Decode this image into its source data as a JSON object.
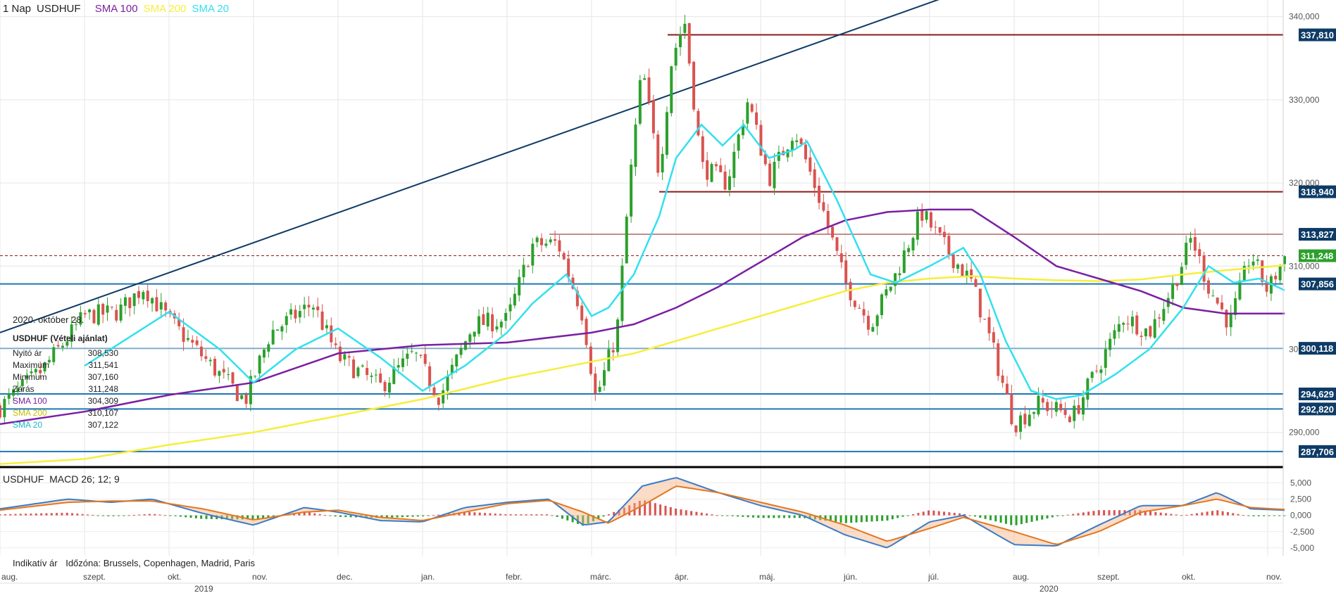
{
  "header": {
    "period": "1 Nap",
    "symbol": "USDHUF",
    "indicators": [
      {
        "name": "SMA 100",
        "color": "#7b1fa2"
      },
      {
        "name": "SMA 200",
        "color": "#f6ee3c"
      },
      {
        "name": "SMA 20",
        "color": "#33e0ee"
      }
    ]
  },
  "info_panel": {
    "date": "2020. október 28.",
    "instrument": "USDHUF (Vételi ajánlat)",
    "rows": [
      {
        "label": "Nyitó ár",
        "value": "308,530"
      },
      {
        "label": "Maximum",
        "value": "311,541"
      },
      {
        "label": "Minimum",
        "value": "307,160"
      },
      {
        "label": "Zárás",
        "value": "311,248"
      },
      {
        "label": "SMA 100",
        "value": "304,309"
      },
      {
        "label": "SMA 200",
        "value": "310,107"
      },
      {
        "label": "SMA 20",
        "value": "307,122"
      }
    ]
  },
  "macd_header": {
    "symbol": "USDHUF",
    "label": "MACD 26; 12; 9"
  },
  "footer": {
    "left": "Indikatív ár",
    "timezone": "Időzóna: Brussels, Copenhagen, Madrid, Paris"
  },
  "colors": {
    "up": "#2ca02c",
    "down": "#d9534f",
    "sma100": "#7b1fa2",
    "sma200": "#f6ee3c",
    "sma20": "#33e0ee",
    "trendline": "#0d3b66",
    "resistance": "#8b1a1a",
    "support": "#1f77b4",
    "macd": "#3a7bc8",
    "signal": "#e3771f"
  },
  "chart_data": [
    {
      "type": "candlestick",
      "title": "1 NapUSDHUF",
      "y_axis": {
        "range": [
          286,
          342
        ],
        "ticks": [
          "290,000",
          "300,000",
          "310,000",
          "320,000",
          "330,000",
          "340,000"
        ]
      },
      "x_axis": {
        "months": [
          "aug.",
          "szept.",
          "okt.",
          "nov.",
          "dec.",
          "jan.",
          "febr.",
          "márc.",
          "ápr.",
          "máj.",
          "jún.",
          "júl.",
          "aug.",
          "szept.",
          "okt.",
          "nov."
        ],
        "years": [
          "2019",
          "2020"
        ]
      },
      "price_levels": [
        {
          "value": 337.81,
          "label": "337,810",
          "kind": "resistance",
          "from": 7.9
        },
        {
          "value": 318.94,
          "label": "318,940",
          "kind": "resistance",
          "from": 7.8
        },
        {
          "value": 313.827,
          "label": "313,827",
          "kind": "resistance-thin",
          "from": 6.5
        },
        {
          "value": 311.248,
          "label": "311,248",
          "kind": "current"
        },
        {
          "value": 307.856,
          "label": "307,856",
          "kind": "support"
        },
        {
          "value": 300.118,
          "label": "300,118",
          "kind": "support-thin"
        },
        {
          "value": 294.629,
          "label": "294,629",
          "kind": "support"
        },
        {
          "value": 292.82,
          "label": "292,820",
          "kind": "support"
        },
        {
          "value": 287.706,
          "label": "287,706",
          "kind": "support"
        }
      ],
      "trendline": [
        {
          "x": 0,
          "y": 302
        },
        {
          "x": 12.2,
          "y": 346
        }
      ],
      "close_path": [
        {
          "x": 0.0,
          "y": 293.0
        },
        {
          "x": 0.5,
          "y": 297.5
        },
        {
          "x": 1.0,
          "y": 304.0
        },
        {
          "x": 1.4,
          "y": 304.5
        },
        {
          "x": 1.7,
          "y": 307.5
        },
        {
          "x": 2.0,
          "y": 303.5
        },
        {
          "x": 2.5,
          "y": 298.0
        },
        {
          "x": 2.9,
          "y": 293.8
        },
        {
          "x": 3.2,
          "y": 302.0
        },
        {
          "x": 3.7,
          "y": 305.5
        },
        {
          "x": 4.0,
          "y": 299.0
        },
        {
          "x": 4.5,
          "y": 295.5
        },
        {
          "x": 4.9,
          "y": 299.5
        },
        {
          "x": 5.2,
          "y": 294.2
        },
        {
          "x": 5.6,
          "y": 303.0
        },
        {
          "x": 6.0,
          "y": 303.5
        },
        {
          "x": 6.3,
          "y": 312.5
        },
        {
          "x": 6.6,
          "y": 312.8
        },
        {
          "x": 6.9,
          "y": 304.0
        },
        {
          "x": 7.05,
          "y": 294.0
        },
        {
          "x": 7.3,
          "y": 302.0
        },
        {
          "x": 7.45,
          "y": 320.0
        },
        {
          "x": 7.6,
          "y": 334.0
        },
        {
          "x": 7.8,
          "y": 321.0
        },
        {
          "x": 7.95,
          "y": 335.0
        },
        {
          "x": 8.1,
          "y": 339.5
        },
        {
          "x": 8.3,
          "y": 322.0
        },
        {
          "x": 8.6,
          "y": 320.0
        },
        {
          "x": 8.85,
          "y": 330.0
        },
        {
          "x": 9.1,
          "y": 320.5
        },
        {
          "x": 9.4,
          "y": 326.5
        },
        {
          "x": 9.7,
          "y": 318.0
        },
        {
          "x": 10.0,
          "y": 308.0
        },
        {
          "x": 10.3,
          "y": 303.0
        },
        {
          "x": 10.6,
          "y": 309.0
        },
        {
          "x": 10.9,
          "y": 316.5
        },
        {
          "x": 11.2,
          "y": 312.0
        },
        {
          "x": 11.5,
          "y": 308.0
        },
        {
          "x": 11.75,
          "y": 300.0
        },
        {
          "x": 12.0,
          "y": 291.0
        },
        {
          "x": 12.3,
          "y": 293.5
        },
        {
          "x": 12.7,
          "y": 292.0
        },
        {
          "x": 13.0,
          "y": 298.0
        },
        {
          "x": 13.3,
          "y": 304.0
        },
        {
          "x": 13.6,
          "y": 302.0
        },
        {
          "x": 13.9,
          "y": 308.0
        },
        {
          "x": 14.1,
          "y": 313.5
        },
        {
          "x": 14.3,
          "y": 307.5
        },
        {
          "x": 14.55,
          "y": 303.0
        },
        {
          "x": 14.8,
          "y": 311.5
        },
        {
          "x": 15.0,
          "y": 307.0
        },
        {
          "x": 15.2,
          "y": 311.2
        }
      ],
      "sma20": [
        {
          "x": 1.0,
          "y": 298.0
        },
        {
          "x": 2.0,
          "y": 304.5
        },
        {
          "x": 2.6,
          "y": 300.0
        },
        {
          "x": 3.0,
          "y": 296.0
        },
        {
          "x": 3.5,
          "y": 300.0
        },
        {
          "x": 4.0,
          "y": 302.5
        },
        {
          "x": 4.5,
          "y": 299.0
        },
        {
          "x": 5.0,
          "y": 295.0
        },
        {
          "x": 5.5,
          "y": 298.0
        },
        {
          "x": 6.0,
          "y": 302.0
        },
        {
          "x": 6.3,
          "y": 305.5
        },
        {
          "x": 6.7,
          "y": 309.0
        },
        {
          "x": 7.0,
          "y": 304.0
        },
        {
          "x": 7.2,
          "y": 305.0
        },
        {
          "x": 7.5,
          "y": 309.0
        },
        {
          "x": 7.8,
          "y": 316.0
        },
        {
          "x": 8.0,
          "y": 323.0
        },
        {
          "x": 8.3,
          "y": 327.0
        },
        {
          "x": 8.55,
          "y": 324.5
        },
        {
          "x": 8.8,
          "y": 327.0
        },
        {
          "x": 9.1,
          "y": 323.0
        },
        {
          "x": 9.4,
          "y": 324.0
        },
        {
          "x": 9.55,
          "y": 325.0
        },
        {
          "x": 9.9,
          "y": 318.0
        },
        {
          "x": 10.3,
          "y": 309.0
        },
        {
          "x": 10.6,
          "y": 308.0
        },
        {
          "x": 11.0,
          "y": 310.0
        },
        {
          "x": 11.4,
          "y": 312.2
        },
        {
          "x": 11.6,
          "y": 309.0
        },
        {
          "x": 11.9,
          "y": 301.0
        },
        {
          "x": 12.2,
          "y": 295.0
        },
        {
          "x": 12.5,
          "y": 294.0
        },
        {
          "x": 12.8,
          "y": 294.5
        },
        {
          "x": 13.2,
          "y": 297.0
        },
        {
          "x": 13.6,
          "y": 300.0
        },
        {
          "x": 14.0,
          "y": 305.0
        },
        {
          "x": 14.3,
          "y": 310.0
        },
        {
          "x": 14.6,
          "y": 308.0
        },
        {
          "x": 14.9,
          "y": 308.5
        },
        {
          "x": 15.2,
          "y": 307.1
        }
      ],
      "sma100": [
        {
          "x": 0.0,
          "y": 291.0
        },
        {
          "x": 1.0,
          "y": 292.5
        },
        {
          "x": 2.0,
          "y": 294.5
        },
        {
          "x": 3.0,
          "y": 296.0
        },
        {
          "x": 4.0,
          "y": 299.5
        },
        {
          "x": 5.0,
          "y": 300.5
        },
        {
          "x": 6.0,
          "y": 300.8
        },
        {
          "x": 7.0,
          "y": 302.0
        },
        {
          "x": 7.5,
          "y": 303.0
        },
        {
          "x": 8.0,
          "y": 305.0
        },
        {
          "x": 8.5,
          "y": 307.5
        },
        {
          "x": 9.0,
          "y": 310.5
        },
        {
          "x": 9.5,
          "y": 313.5
        },
        {
          "x": 10.0,
          "y": 315.5
        },
        {
          "x": 10.5,
          "y": 316.5
        },
        {
          "x": 11.0,
          "y": 316.8
        },
        {
          "x": 11.5,
          "y": 316.8
        },
        {
          "x": 12.0,
          "y": 313.5
        },
        {
          "x": 12.5,
          "y": 310.0
        },
        {
          "x": 13.0,
          "y": 308.5
        },
        {
          "x": 13.5,
          "y": 307.0
        },
        {
          "x": 14.0,
          "y": 305.0
        },
        {
          "x": 14.5,
          "y": 304.3
        },
        {
          "x": 15.2,
          "y": 304.3
        }
      ],
      "sma200": [
        {
          "x": 0.0,
          "y": 286.2
        },
        {
          "x": 1.0,
          "y": 286.8
        },
        {
          "x": 2.0,
          "y": 288.5
        },
        {
          "x": 3.0,
          "y": 290.0
        },
        {
          "x": 4.0,
          "y": 292.0
        },
        {
          "x": 5.0,
          "y": 294.0
        },
        {
          "x": 6.0,
          "y": 296.5
        },
        {
          "x": 7.0,
          "y": 298.5
        },
        {
          "x": 7.5,
          "y": 299.5
        },
        {
          "x": 8.0,
          "y": 301.0
        },
        {
          "x": 8.5,
          "y": 302.5
        },
        {
          "x": 9.0,
          "y": 304.0
        },
        {
          "x": 9.5,
          "y": 305.5
        },
        {
          "x": 10.0,
          "y": 307.0
        },
        {
          "x": 10.5,
          "y": 308.0
        },
        {
          "x": 11.0,
          "y": 308.5
        },
        {
          "x": 11.5,
          "y": 308.8
        },
        {
          "x": 12.0,
          "y": 308.5
        },
        {
          "x": 12.5,
          "y": 308.3
        },
        {
          "x": 13.0,
          "y": 308.2
        },
        {
          "x": 13.5,
          "y": 308.4
        },
        {
          "x": 14.0,
          "y": 309.0
        },
        {
          "x": 14.5,
          "y": 309.5
        },
        {
          "x": 15.2,
          "y": 310.1
        }
      ]
    },
    {
      "type": "macd",
      "title": "USDHUF MACD 26; 12; 9",
      "y_axis": {
        "range": [
          -6200,
          7200
        ],
        "ticks": [
          "5,000",
          "2,500",
          "0,000",
          "-2,500",
          "-5,000"
        ]
      },
      "macd": [
        {
          "x": 0.0,
          "y": 1000
        },
        {
          "x": 0.8,
          "y": 2500
        },
        {
          "x": 1.3,
          "y": 2000
        },
        {
          "x": 1.8,
          "y": 2500
        },
        {
          "x": 2.4,
          "y": 300
        },
        {
          "x": 3.0,
          "y": -1500
        },
        {
          "x": 3.6,
          "y": 1200
        },
        {
          "x": 4.0,
          "y": 500
        },
        {
          "x": 4.5,
          "y": -800
        },
        {
          "x": 5.0,
          "y": -1000
        },
        {
          "x": 5.5,
          "y": 1200
        },
        {
          "x": 6.0,
          "y": 2000
        },
        {
          "x": 6.5,
          "y": 2500
        },
        {
          "x": 6.9,
          "y": -1500
        },
        {
          "x": 7.2,
          "y": -1000
        },
        {
          "x": 7.6,
          "y": 4500
        },
        {
          "x": 8.0,
          "y": 5800
        },
        {
          "x": 8.5,
          "y": 3500
        },
        {
          "x": 9.0,
          "y": 1500
        },
        {
          "x": 9.5,
          "y": 0
        },
        {
          "x": 10.0,
          "y": -3000
        },
        {
          "x": 10.5,
          "y": -5000
        },
        {
          "x": 11.0,
          "y": -1000
        },
        {
          "x": 11.4,
          "y": 0
        },
        {
          "x": 12.0,
          "y": -4500
        },
        {
          "x": 12.5,
          "y": -4700
        },
        {
          "x": 13.0,
          "y": -1500
        },
        {
          "x": 13.5,
          "y": 1500
        },
        {
          "x": 14.0,
          "y": 1500
        },
        {
          "x": 14.4,
          "y": 3500
        },
        {
          "x": 14.8,
          "y": 1000
        },
        {
          "x": 15.2,
          "y": 800
        }
      ],
      "signal": [
        {
          "x": 0.0,
          "y": 800
        },
        {
          "x": 0.8,
          "y": 2000
        },
        {
          "x": 1.3,
          "y": 2200
        },
        {
          "x": 1.8,
          "y": 2200
        },
        {
          "x": 2.4,
          "y": 1000
        },
        {
          "x": 3.0,
          "y": -700
        },
        {
          "x": 3.6,
          "y": 500
        },
        {
          "x": 4.0,
          "y": 800
        },
        {
          "x": 4.5,
          "y": -300
        },
        {
          "x": 5.0,
          "y": -800
        },
        {
          "x": 5.5,
          "y": 500
        },
        {
          "x": 6.0,
          "y": 1800
        },
        {
          "x": 6.5,
          "y": 2300
        },
        {
          "x": 6.9,
          "y": 500
        },
        {
          "x": 7.2,
          "y": -1200
        },
        {
          "x": 7.6,
          "y": 1500
        },
        {
          "x": 8.0,
          "y": 4500
        },
        {
          "x": 8.5,
          "y": 3500
        },
        {
          "x": 9.0,
          "y": 2000
        },
        {
          "x": 9.5,
          "y": 500
        },
        {
          "x": 10.0,
          "y": -1500
        },
        {
          "x": 10.5,
          "y": -4000
        },
        {
          "x": 11.0,
          "y": -2000
        },
        {
          "x": 11.4,
          "y": -300
        },
        {
          "x": 12.0,
          "y": -2500
        },
        {
          "x": 12.5,
          "y": -4500
        },
        {
          "x": 13.0,
          "y": -2500
        },
        {
          "x": 13.5,
          "y": 500
        },
        {
          "x": 14.0,
          "y": 1500
        },
        {
          "x": 14.4,
          "y": 2500
        },
        {
          "x": 14.8,
          "y": 1200
        },
        {
          "x": 15.2,
          "y": 900
        }
      ]
    }
  ]
}
